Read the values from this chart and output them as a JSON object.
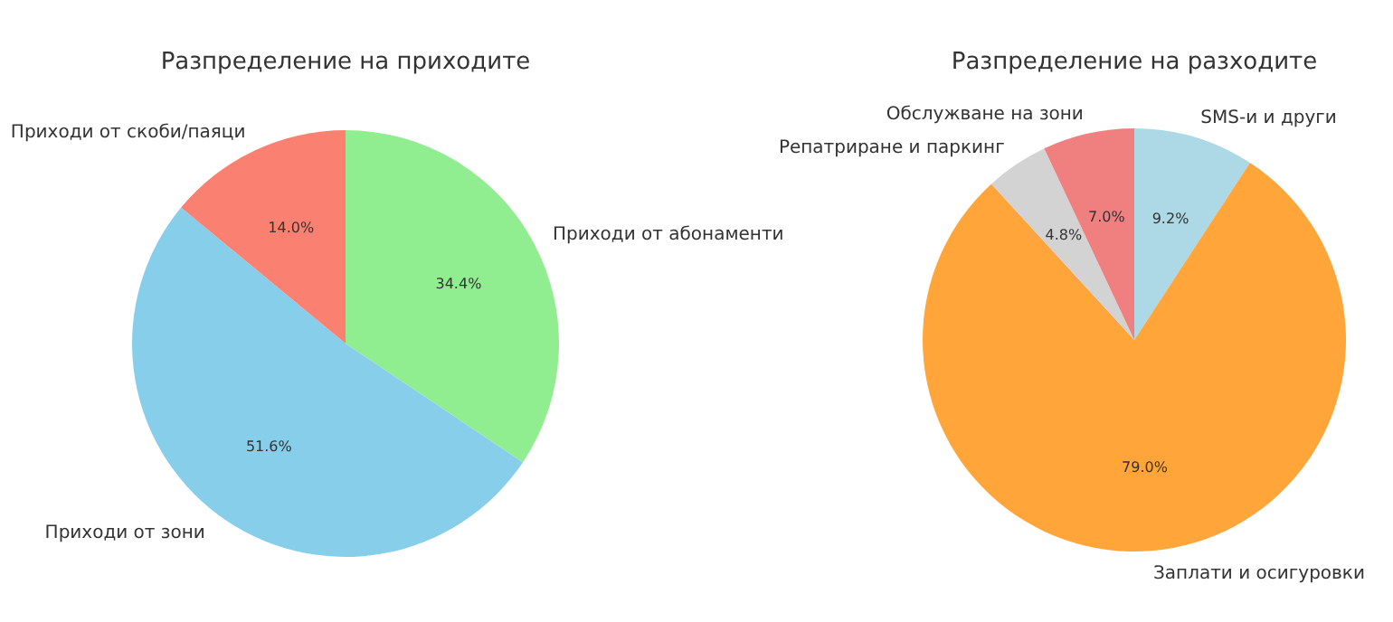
{
  "chart_data": [
    {
      "type": "pie",
      "title": "Разпределение на приходите",
      "categories": [
        "Приходи от абонаменти",
        "Приходи от зони",
        "Приходи от скоби/паяци"
      ],
      "values": [
        34.4,
        51.6,
        14.0
      ],
      "value_labels": [
        "34.4%",
        "51.6%",
        "14.0%"
      ],
      "colors": [
        "#90ee90",
        "#87ceeb",
        "#fa8072"
      ]
    },
    {
      "type": "pie",
      "title": "Разпределение на разходите",
      "categories": [
        "SMS-и и други",
        "Заплати и осигуровки",
        "Репатриране и паркинг",
        "Обслужване на зони"
      ],
      "values": [
        9.2,
        79.0,
        4.8,
        7.0
      ],
      "value_labels": [
        "9.2%",
        "79.0%",
        "4.8%",
        "7.0%"
      ],
      "colors": [
        "#add8e6",
        "#ffa53a",
        "#d3d3d3",
        "#f08080"
      ]
    }
  ]
}
